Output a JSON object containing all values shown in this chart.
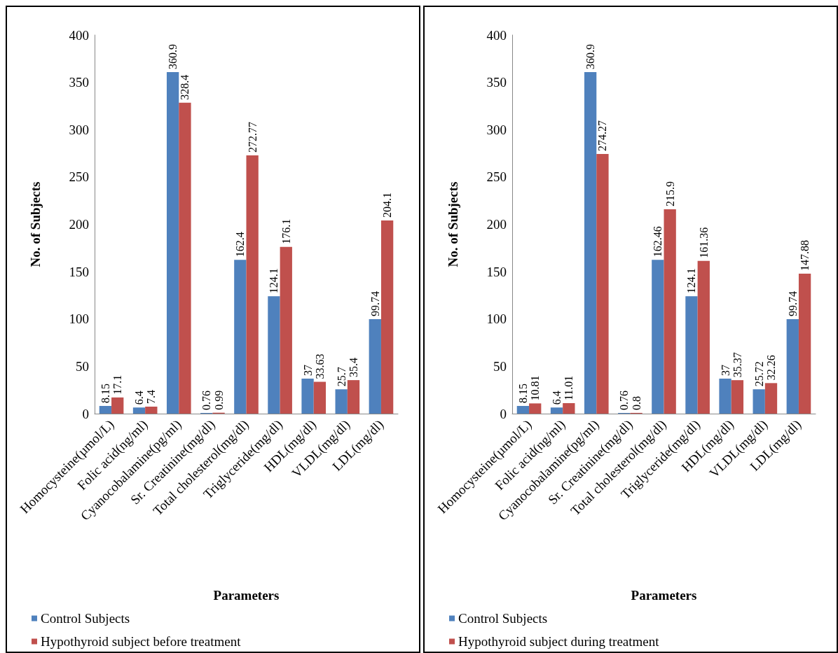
{
  "chart_data": [
    {
      "type": "bar",
      "xlabel": "Parameters",
      "ylabel": "No. of Subjects",
      "categories": [
        "Homocysteine(µmol/L)",
        "Folic acid(ng/ml)",
        "Cyanocobalamine(pg/ml)",
        "Sr. Creatinine(mg/dl)",
        "Total cholesterol(mg/dl)",
        "Triglyceride(mg/dl)",
        "HDL(mg/dl)",
        "VLDL(mg/dl)",
        "LDL(mg/dl)"
      ],
      "series": [
        {
          "name": "Control Subjects",
          "color": "#4f81bd",
          "values": [
            8.15,
            6.4,
            360.9,
            0.76,
            162.4,
            124.1,
            37,
            25.7,
            99.74
          ]
        },
        {
          "name": "Hypothyroid subject before treatment",
          "color": "#c0504d",
          "values": [
            17.1,
            7.4,
            328.4,
            0.99,
            272.77,
            176.1,
            33.63,
            35.4,
            204.1
          ]
        }
      ],
      "ylim": [
        0,
        400
      ],
      "yticks": [
        0,
        50,
        100,
        150,
        200,
        250,
        300,
        350,
        400
      ],
      "legend": "bottom",
      "data_labels": true
    },
    {
      "type": "bar",
      "xlabel": "Parameters",
      "ylabel": "No. of Subjects",
      "categories": [
        "Homocysteine(µmol/L)",
        "Folic acid(ng/ml)",
        "Cyanocobalamine(pg/ml)",
        "Sr. Creatinine(mg/dl)",
        "Total cholesterol(mg/dl)",
        "Triglyceride(mg/dl)",
        "HDL(mg/dl)",
        "VLDL(mg/dl)",
        "LDL(mg/dl)"
      ],
      "series": [
        {
          "name": "Control Subjects",
          "color": "#4f81bd",
          "values": [
            8.15,
            6.4,
            360.9,
            0.76,
            162.46,
            124.1,
            37,
            25.72,
            99.74
          ]
        },
        {
          "name": "Hypothyroid subject during treatment",
          "color": "#c0504d",
          "values": [
            10.81,
            11.01,
            274.27,
            0.8,
            215.9,
            161.36,
            35.37,
            32.26,
            147.88
          ]
        }
      ],
      "ylim": [
        0,
        400
      ],
      "yticks": [
        0,
        50,
        100,
        150,
        200,
        250,
        300,
        350,
        400
      ],
      "legend": "bottom",
      "data_labels": true
    }
  ]
}
